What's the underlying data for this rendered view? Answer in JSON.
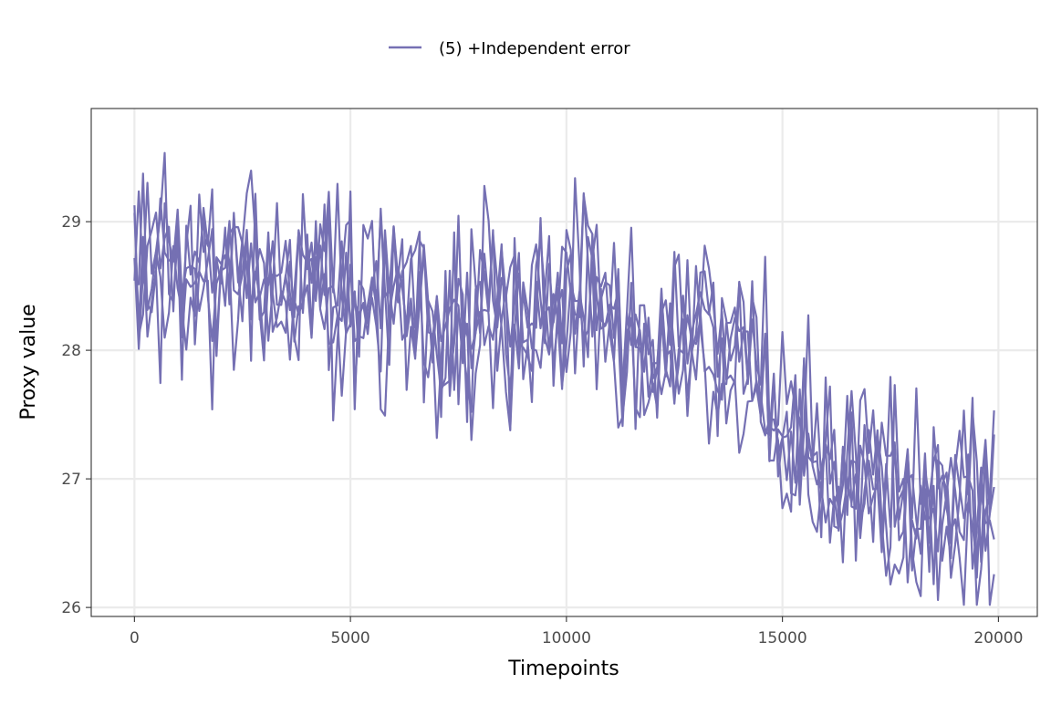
{
  "chart_data": {
    "type": "line",
    "title": "",
    "xlabel": "Timepoints",
    "ylabel": "Proxy value",
    "xlim": [
      -1000,
      20900
    ],
    "ylim": [
      25.93,
      29.88
    ],
    "xticks": [
      0,
      5000,
      10000,
      15000,
      20000
    ],
    "yticks": [
      26,
      27,
      28,
      29
    ],
    "grid": true,
    "legend": {
      "position": "top",
      "entries": [
        {
          "label": "(5) +Independent error",
          "color": "#7570b3"
        }
      ]
    },
    "series_color": "#7570b3",
    "series_count": 5,
    "x_step": 100,
    "x_start": 0,
    "x_end": 19900,
    "mean_trend": [
      [
        0,
        28.7
      ],
      [
        1000,
        28.6
      ],
      [
        2000,
        28.55
      ],
      [
        3000,
        28.55
      ],
      [
        4000,
        28.5
      ],
      [
        5000,
        28.45
      ],
      [
        6000,
        28.35
      ],
      [
        7000,
        28.2
      ],
      [
        8000,
        28.3
      ],
      [
        9000,
        28.25
      ],
      [
        10000,
        28.4
      ],
      [
        10500,
        28.45
      ],
      [
        11000,
        28.2
      ],
      [
        12000,
        28.0
      ],
      [
        13000,
        28.1
      ],
      [
        14000,
        28.05
      ],
      [
        14500,
        27.8
      ],
      [
        15000,
        27.45
      ],
      [
        15500,
        27.25
      ],
      [
        16000,
        27.1
      ],
      [
        17000,
        26.95
      ],
      [
        18000,
        26.9
      ],
      [
        19000,
        26.85
      ],
      [
        19900,
        26.75
      ]
    ],
    "noise_sd": 0.38
  }
}
